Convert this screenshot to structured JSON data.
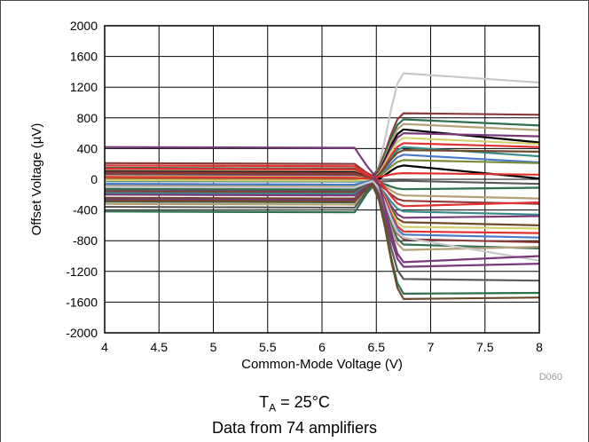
{
  "chart_data": {
    "type": "line",
    "xlabel": "Common-Mode Voltage (V)",
    "ylabel": "Offset Voltage (µV)",
    "xlim": [
      4,
      8
    ],
    "ylim": [
      -2000,
      2000
    ],
    "x_ticks": [
      "4",
      "4.5",
      "5",
      "5.5",
      "6",
      "6.5",
      "7",
      "7.5",
      "8"
    ],
    "y_ticks": [
      "2000",
      "1600",
      "1200",
      "800",
      "400",
      "0",
      "-400",
      "-800",
      "-1200",
      "-1600",
      "-2000"
    ],
    "grid": true,
    "figure_code": "D060",
    "series_shape": {
      "flat_until": 6.3,
      "transition_end": 6.75,
      "x_end": 8
    },
    "series": [
      {
        "color": "#c8c8c8",
        "values": [
          -30,
          -30,
          1380,
          1260
        ]
      },
      {
        "color": "#8b3a3a",
        "values": [
          210,
          200,
          860,
          840
        ]
      },
      {
        "color": "#2f6e4f",
        "values": [
          150,
          140,
          780,
          700
        ]
      },
      {
        "color": "#b4a078",
        "values": [
          120,
          110,
          720,
          640
        ]
      },
      {
        "color": "#000000",
        "values": [
          100,
          90,
          650,
          480
        ]
      },
      {
        "color": "#7a3a7a",
        "values": [
          60,
          50,
          600,
          560
        ]
      },
      {
        "color": "#d4d070",
        "values": [
          40,
          30,
          540,
          460
        ]
      },
      {
        "color": "#e03030",
        "values": [
          0,
          -10,
          470,
          420
        ]
      },
      {
        "color": "#3a8c8c",
        "values": [
          -20,
          -30,
          420,
          300
        ]
      },
      {
        "color": "#6e4a2a",
        "values": [
          80,
          70,
          380,
          360
        ]
      },
      {
        "color": "#4a7ac8",
        "values": [
          -60,
          -70,
          320,
          220
        ]
      },
      {
        "color": "#7a8c3a",
        "values": [
          20,
          10,
          250,
          210
        ]
      },
      {
        "color": "#000000",
        "values": [
          -100,
          -110,
          180,
          10
        ]
      },
      {
        "color": "#e03030",
        "values": [
          140,
          130,
          80,
          60
        ]
      },
      {
        "color": "#5a5a5a",
        "values": [
          -140,
          -150,
          -20,
          -60
        ]
      },
      {
        "color": "#2f6e4f",
        "values": [
          -120,
          -130,
          -130,
          -110
        ]
      },
      {
        "color": "#b4a078",
        "values": [
          -80,
          -90,
          -210,
          -250
        ]
      },
      {
        "color": "#8b3a3a",
        "values": [
          -160,
          -170,
          -280,
          -320
        ]
      },
      {
        "color": "#e03030",
        "values": [
          180,
          170,
          -350,
          -300
        ]
      },
      {
        "color": "#3a8c8c",
        "values": [
          -180,
          -190,
          -420,
          -460
        ]
      },
      {
        "color": "#7a3a7a",
        "values": [
          -200,
          -210,
          -500,
          -480
        ]
      },
      {
        "color": "#6e4a2a",
        "values": [
          -240,
          -250,
          -560,
          -600
        ]
      },
      {
        "color": "#d4d070",
        "values": [
          -10,
          -20,
          -620,
          -640
        ]
      },
      {
        "color": "#e03030",
        "values": [
          30,
          20,
          -680,
          -700
        ]
      },
      {
        "color": "#4a7ac8",
        "values": [
          -60,
          -70,
          -720,
          -760
        ]
      },
      {
        "color": "#8b3a3a",
        "values": [
          90,
          80,
          -780,
          -820
        ]
      },
      {
        "color": "#2f6e4f",
        "values": [
          -290,
          -300,
          -850,
          -900
        ]
      },
      {
        "color": "#b4a078",
        "values": [
          -320,
          -330,
          -920,
          -880
        ]
      },
      {
        "color": "#c8c8c8",
        "values": [
          -100,
          -110,
          -760,
          -1060
        ]
      },
      {
        "color": "#7a3a7a",
        "values": [
          -260,
          -270,
          -1140,
          -1100
        ]
      },
      {
        "color": "#7a3a7a",
        "values": [
          420,
          410,
          -1080,
          -1000
        ]
      },
      {
        "color": "#5a5a5a",
        "values": [
          -360,
          -370,
          -1300,
          -1320
        ]
      },
      {
        "color": "#2f6e4f",
        "values": [
          -420,
          -430,
          -1490,
          -1480
        ]
      },
      {
        "color": "#6e4a2a",
        "values": [
          -280,
          -290,
          -1560,
          -1540
        ]
      }
    ]
  },
  "captions": {
    "ta_prefix": "T",
    "ta_sub": "A",
    "ta_suffix": " = 25°C",
    "line2": "Data from 74 amplifiers"
  }
}
